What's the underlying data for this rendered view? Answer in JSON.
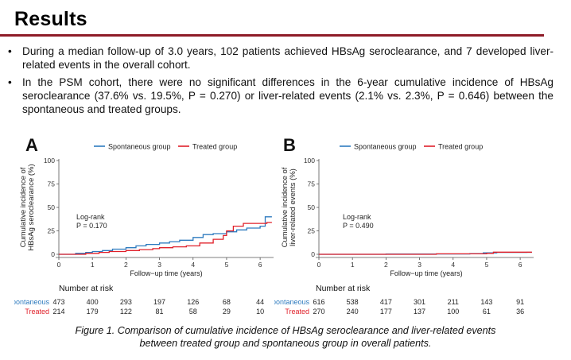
{
  "slide": {
    "title": "Results",
    "bullets": [
      "During a median follow-up of 3.0 years, 102 patients achieved HBsAg seroclearance, and 7 developed liver-related events in the overall cohort.",
      "In the PSM cohort, there were no significant differences in the 6-year cumulative incidence of HBsAg seroclearance (37.6% vs. 19.5%, P = 0.270) or liver-related events (2.1% vs. 2.3%, P = 0.646) between the spontaneous and treated groups."
    ],
    "caption_lines": [
      "Figure 1. Comparison of cumulative incidence of HBsAg seroclearance and liver-related events",
      "between treated group and spontaneous group in overall patients."
    ]
  },
  "colors": {
    "spontaneous": "#2e7bbf",
    "treated": "#e0202a",
    "accent": "#8e1c28"
  },
  "chart_data": [
    {
      "panel": "A",
      "type": "line",
      "step": true,
      "legend": [
        "Spontaneous group",
        "Treated group"
      ],
      "legend_position": "top",
      "xlabel": "Follow−up time (years)",
      "ylabel_lines": [
        "Cumulative incidence of",
        "HBsAg seroclearance (%)"
      ],
      "xlim": [
        0,
        6.4
      ],
      "ylim": [
        0,
        100
      ],
      "xticks": [
        0,
        1,
        2,
        3,
        4,
        5,
        6
      ],
      "yticks": [
        0,
        25,
        50,
        75,
        100
      ],
      "annotation": [
        "Log-rank",
        "P = 0.170"
      ],
      "series": [
        {
          "name": "Spontaneous group",
          "color": "#2e7bbf",
          "x": [
            0,
            0.5,
            0.8,
            1.0,
            1.3,
            1.6,
            2.0,
            2.3,
            2.6,
            3.0,
            3.3,
            3.6,
            4.0,
            4.3,
            4.6,
            5.0,
            5.3,
            5.6,
            6.0,
            6.15,
            6.35
          ],
          "y": [
            0,
            1,
            2,
            3,
            4,
            5.5,
            7,
            9,
            10.5,
            12,
            13.5,
            15,
            18,
            21,
            22,
            24,
            26,
            28,
            30,
            40,
            40
          ]
        },
        {
          "name": "Treated group",
          "color": "#e0202a",
          "x": [
            0,
            0.8,
            1.2,
            1.5,
            2.0,
            2.4,
            2.8,
            3.0,
            3.4,
            3.8,
            4.2,
            4.6,
            4.9,
            5.0,
            5.2,
            5.5,
            5.8,
            6.2,
            6.35
          ],
          "y": [
            0,
            1,
            2,
            3,
            4,
            5,
            6,
            7,
            8,
            9,
            12,
            16,
            20,
            25,
            30,
            33,
            33,
            34,
            34
          ]
        }
      ],
      "risk_table": {
        "title": "Number at risk",
        "rows": [
          {
            "label": "Spontaneous",
            "color": "#2e7bbf",
            "values": [
              "473",
              "400",
              "293",
              "197",
              "126",
              "68",
              "44"
            ]
          },
          {
            "label": "Treated",
            "color": "#e0202a",
            "values": [
              "214",
              "179",
              "122",
              "81",
              "58",
              "29",
              "10"
            ]
          }
        ]
      }
    },
    {
      "panel": "B",
      "type": "line",
      "step": true,
      "legend": [
        "Spontaneous group",
        "Treated group"
      ],
      "legend_position": "top",
      "xlabel": "Follow−up time (years)",
      "ylabel_lines": [
        "Cumulative incidence of",
        "liver-related events (%)"
      ],
      "xlim": [
        0,
        6.4
      ],
      "ylim": [
        0,
        100
      ],
      "xticks": [
        0,
        1,
        2,
        3,
        4,
        5,
        6
      ],
      "yticks": [
        0,
        25,
        50,
        75,
        100
      ],
      "annotation": [
        "Log-rank",
        "P = 0.490"
      ],
      "series": [
        {
          "name": "Spontaneous group",
          "color": "#2e7bbf",
          "x": [
            0,
            2.0,
            4.5,
            4.9,
            5.3,
            6.2,
            6.35
          ],
          "y": [
            0,
            0.3,
            0.8,
            1.5,
            2.0,
            2.1,
            2.1
          ]
        },
        {
          "name": "Treated group",
          "color": "#e0202a",
          "x": [
            0,
            3.5,
            5.0,
            5.2,
            6.35
          ],
          "y": [
            0,
            0.5,
            1.0,
            2.3,
            2.3
          ]
        }
      ],
      "risk_table": {
        "title": "Number at risk",
        "rows": [
          {
            "label": "Spontaneous",
            "color": "#2e7bbf",
            "values": [
              "616",
              "538",
              "417",
              "301",
              "211",
              "143",
              "91"
            ]
          },
          {
            "label": "Treated",
            "color": "#e0202a",
            "values": [
              "270",
              "240",
              "177",
              "137",
              "100",
              "61",
              "36"
            ]
          }
        ]
      }
    }
  ]
}
